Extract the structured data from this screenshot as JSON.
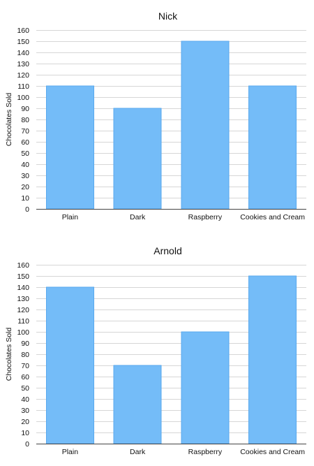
{
  "colors": {
    "bar_fill": "#74bcf8",
    "bar_stroke": "#5aa9ee",
    "grid": "#d6d6d6",
    "axis": "#444444"
  },
  "chart_data": [
    {
      "type": "bar",
      "title": "Nick",
      "xlabel": "",
      "ylabel": "Chocolates Sold",
      "ylim": [
        0,
        160
      ],
      "ytick_step": 10,
      "grid": true,
      "categories": [
        "Plain",
        "Dark",
        "Raspberry",
        "Cookies and Cream"
      ],
      "values": [
        110,
        90,
        150,
        110
      ]
    },
    {
      "type": "bar",
      "title": "Arnold",
      "xlabel": "",
      "ylabel": "Chocolates Sold",
      "ylim": [
        0,
        160
      ],
      "ytick_step": 10,
      "grid": true,
      "categories": [
        "Plain",
        "Dark",
        "Raspberry",
        "Cookies and Cream"
      ],
      "values": [
        140,
        70,
        100,
        150
      ]
    }
  ]
}
